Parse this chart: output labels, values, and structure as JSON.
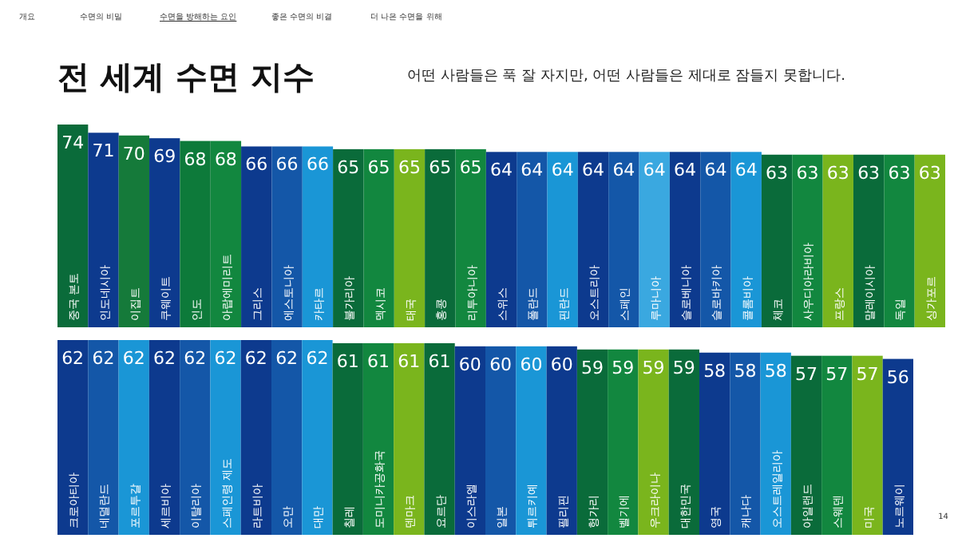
{
  "chart_data": [
    {
      "type": "bar",
      "title": "전 세계 수면 지수",
      "subtitle": "어떤 사람들은 푹 잘 자지만, 어떤 사람들은 제대로 잠들지 못합니다.",
      "annotations": [
        "개요",
        "수면의 비밀",
        "수면을 방해하는 요인",
        "좋은 수면의 비결",
        "더 나은 수면을 위해"
      ],
      "data_labels": true,
      "categories": [
        "중국 본토",
        "인도네시아",
        "이집트",
        "쿠웨이트",
        "인도",
        "아랍에미리트",
        "그리스",
        "에스토니아",
        "카타르",
        "불가리아",
        "멕시코",
        "태국",
        "홍콩",
        "리투아니아",
        "스위스",
        "폴란드",
        "핀란드",
        "오스트리아",
        "스페인",
        "루마니아",
        "슬로베니아",
        "슬로바키아",
        "콜롬비아",
        "체코",
        "사우디아라비아",
        "프랑스",
        "말레이시아",
        "독일",
        "싱가포르"
      ],
      "values": [
        74,
        71,
        70,
        69,
        68,
        68,
        66,
        66,
        66,
        65,
        65,
        65,
        65,
        65,
        64,
        64,
        64,
        64,
        64,
        64,
        64,
        64,
        64,
        63,
        63,
        63,
        63,
        63,
        63
      ],
      "colors": [
        "#0a6b3a",
        "#0d3a8e",
        "#157a3a",
        "#0d3a8e",
        "#0d7a3a",
        "#12873f",
        "#0d3a8e",
        "#1457a8",
        "#1a96d6",
        "#0a6b3a",
        "#12873f",
        "#7ab51d",
        "#0a6b3a",
        "#12873f",
        "#0d3a8e",
        "#1457a8",
        "#1a96d6",
        "#0d3a8e",
        "#1457a8",
        "#3aa8e0",
        "#0d3a8e",
        "#1457a8",
        "#1a96d6",
        "#0a6b3a",
        "#12873f",
        "#7ab51d",
        "#0a6b3a",
        "#12873f",
        "#7ab51d"
      ]
    },
    {
      "type": "bar",
      "annotations": [
        "14"
      ],
      "data_labels": true,
      "categories": [
        "크로아티아",
        "네덜란드",
        "포르투갈",
        "세르비아",
        "이탈리아",
        "스페인령 제도",
        "라트비아",
        "오만",
        "대만",
        "칠레",
        "도미니카공화국",
        "덴마크",
        "요르단",
        "이스라엘",
        "일본",
        "튀르키예",
        "필리핀",
        "헝가리",
        "벨기에",
        "우크라이나",
        "대한민국",
        "영국",
        "캐나다",
        "오스트레일리아",
        "아일랜드",
        "스웨덴",
        "미국",
        "노르웨이"
      ],
      "values": [
        62,
        62,
        62,
        62,
        62,
        62,
        62,
        62,
        62,
        61,
        61,
        61,
        61,
        60,
        60,
        60,
        60,
        59,
        59,
        59,
        59,
        58,
        58,
        58,
        57,
        57,
        57,
        56
      ],
      "colors": [
        "#0d3a8e",
        "#1457a8",
        "#1a96d6",
        "#0d3a8e",
        "#1457a8",
        "#1a96d6",
        "#0d3a8e",
        "#1457a8",
        "#1a96d6",
        "#0a6b3a",
        "#12873f",
        "#7ab51d",
        "#0a6b3a",
        "#0d3a8e",
        "#1457a8",
        "#1a96d6",
        "#0d3a8e",
        "#0a6b3a",
        "#12873f",
        "#7ab51d",
        "#0a6b3a",
        "#0d3a8e",
        "#1457a8",
        "#1a96d6",
        "#0a6b3a",
        "#12873f",
        "#7ab51d",
        "#0d3a8e"
      ]
    }
  ]
}
